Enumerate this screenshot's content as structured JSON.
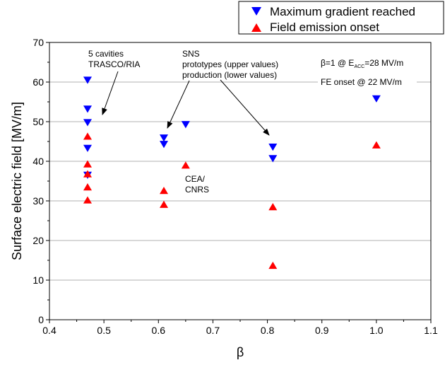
{
  "chart_data": {
    "type": "scatter",
    "xlabel": "β",
    "ylabel": "Surface electric field [MV/m]",
    "xlim": [
      0.4,
      1.1
    ],
    "ylim": [
      0,
      70
    ],
    "xticks": [
      0.4,
      0.5,
      0.6,
      0.7,
      0.8,
      0.9,
      1.0,
      1.1
    ],
    "xtick_labels": [
      "0.4",
      "0.5",
      "0.6",
      "0.7",
      "0.8",
      "0.9",
      "1.0",
      "1.1"
    ],
    "yticks": [
      0,
      10,
      20,
      30,
      40,
      50,
      60,
      70
    ],
    "ytick_labels": [
      "0",
      "10",
      "20",
      "30",
      "40",
      "50",
      "60",
      "70"
    ],
    "grid": "horizontal",
    "legend_position": "top-right, outside plot",
    "series": [
      {
        "name": "Maximum gradient reached",
        "marker": "triangle-down",
        "color": "#0000ff",
        "x": [
          0.47,
          0.47,
          0.47,
          0.47,
          0.47,
          0.61,
          0.61,
          0.65,
          0.81,
          0.81,
          1.0
        ],
        "y": [
          60.5,
          53.2,
          49.8,
          43.3,
          36.5,
          45.9,
          44.3,
          49.3,
          43.6,
          40.7,
          55.8
        ]
      },
      {
        "name": "Field emission onset",
        "marker": "triangle-up",
        "color": "#ff0000",
        "x": [
          0.47,
          0.47,
          0.47,
          0.47,
          0.47,
          0.61,
          0.61,
          0.65,
          0.81,
          0.81,
          1.0
        ],
        "y": [
          46.3,
          39.3,
          36.8,
          33.5,
          30.2,
          32.6,
          29.1,
          39.0,
          28.5,
          13.7,
          44.1
        ]
      }
    ],
    "annotations": [
      {
        "lines": [
          "5 cavities",
          "TRASCO/RIA"
        ]
      },
      {
        "lines": [
          "SNS",
          "prototypes (upper values)",
          "production (lower values)"
        ]
      },
      {
        "lines": [
          "CEA/",
          "CNRS"
        ]
      },
      {
        "beta_text": "β=1 @ E",
        "sub": "ACC",
        "rest": "=28 MV/m",
        "line2": "FE onset @ 22 MV/m"
      }
    ]
  }
}
